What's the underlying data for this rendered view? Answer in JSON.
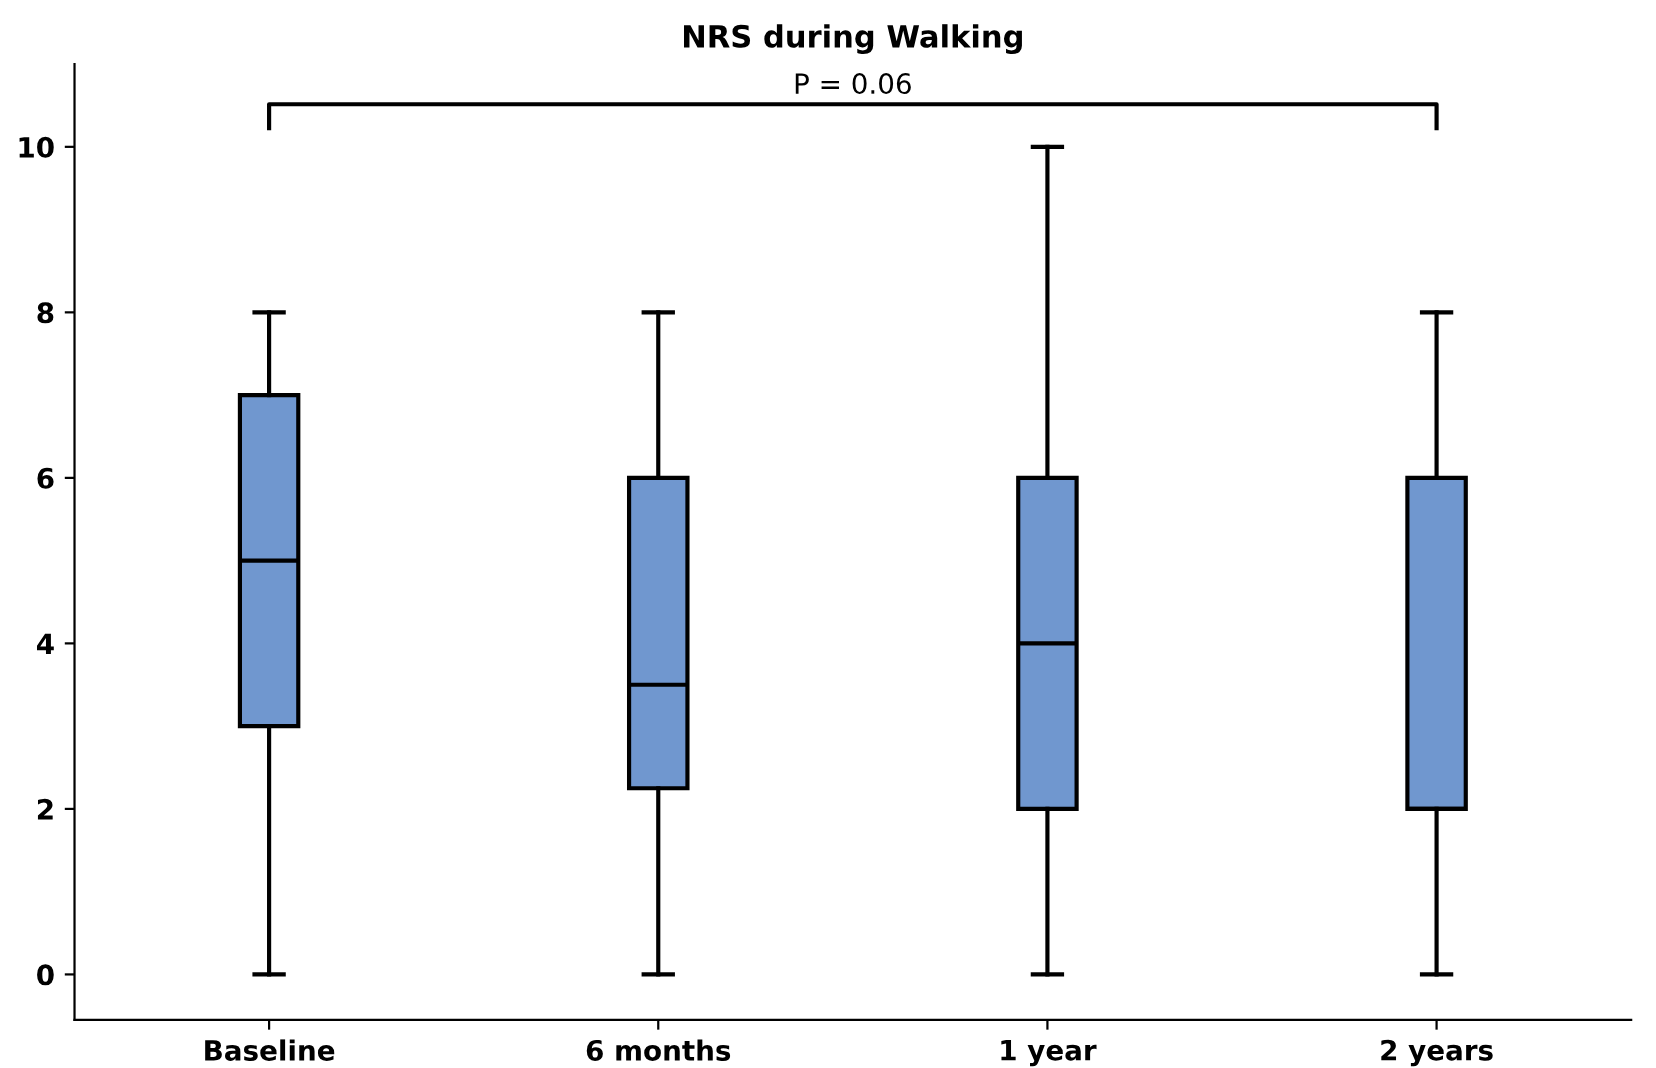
{
  "chart_data": {
    "type": "box",
    "title": "NRS during Walking",
    "categories": [
      "Baseline",
      "6 months",
      "1 year",
      "2 years"
    ],
    "boxes": [
      {
        "low": 0,
        "q1": 3,
        "median": 5,
        "q3": 7,
        "high": 8
      },
      {
        "low": 0,
        "q1": 2.25,
        "median": 3.5,
        "q3": 6,
        "high": 8
      },
      {
        "low": 0,
        "q1": 2,
        "median": 4,
        "q3": 6,
        "high": 10
      },
      {
        "low": 0,
        "q1": 2,
        "median": 2,
        "q3": 6,
        "high": 8
      }
    ],
    "color": "#7097cf",
    "ylim": [
      -0.55,
      11
    ],
    "yticks": [
      0,
      2,
      4,
      6,
      8,
      10
    ],
    "grid": false,
    "annotations": [
      "P = 0.06"
    ]
  }
}
